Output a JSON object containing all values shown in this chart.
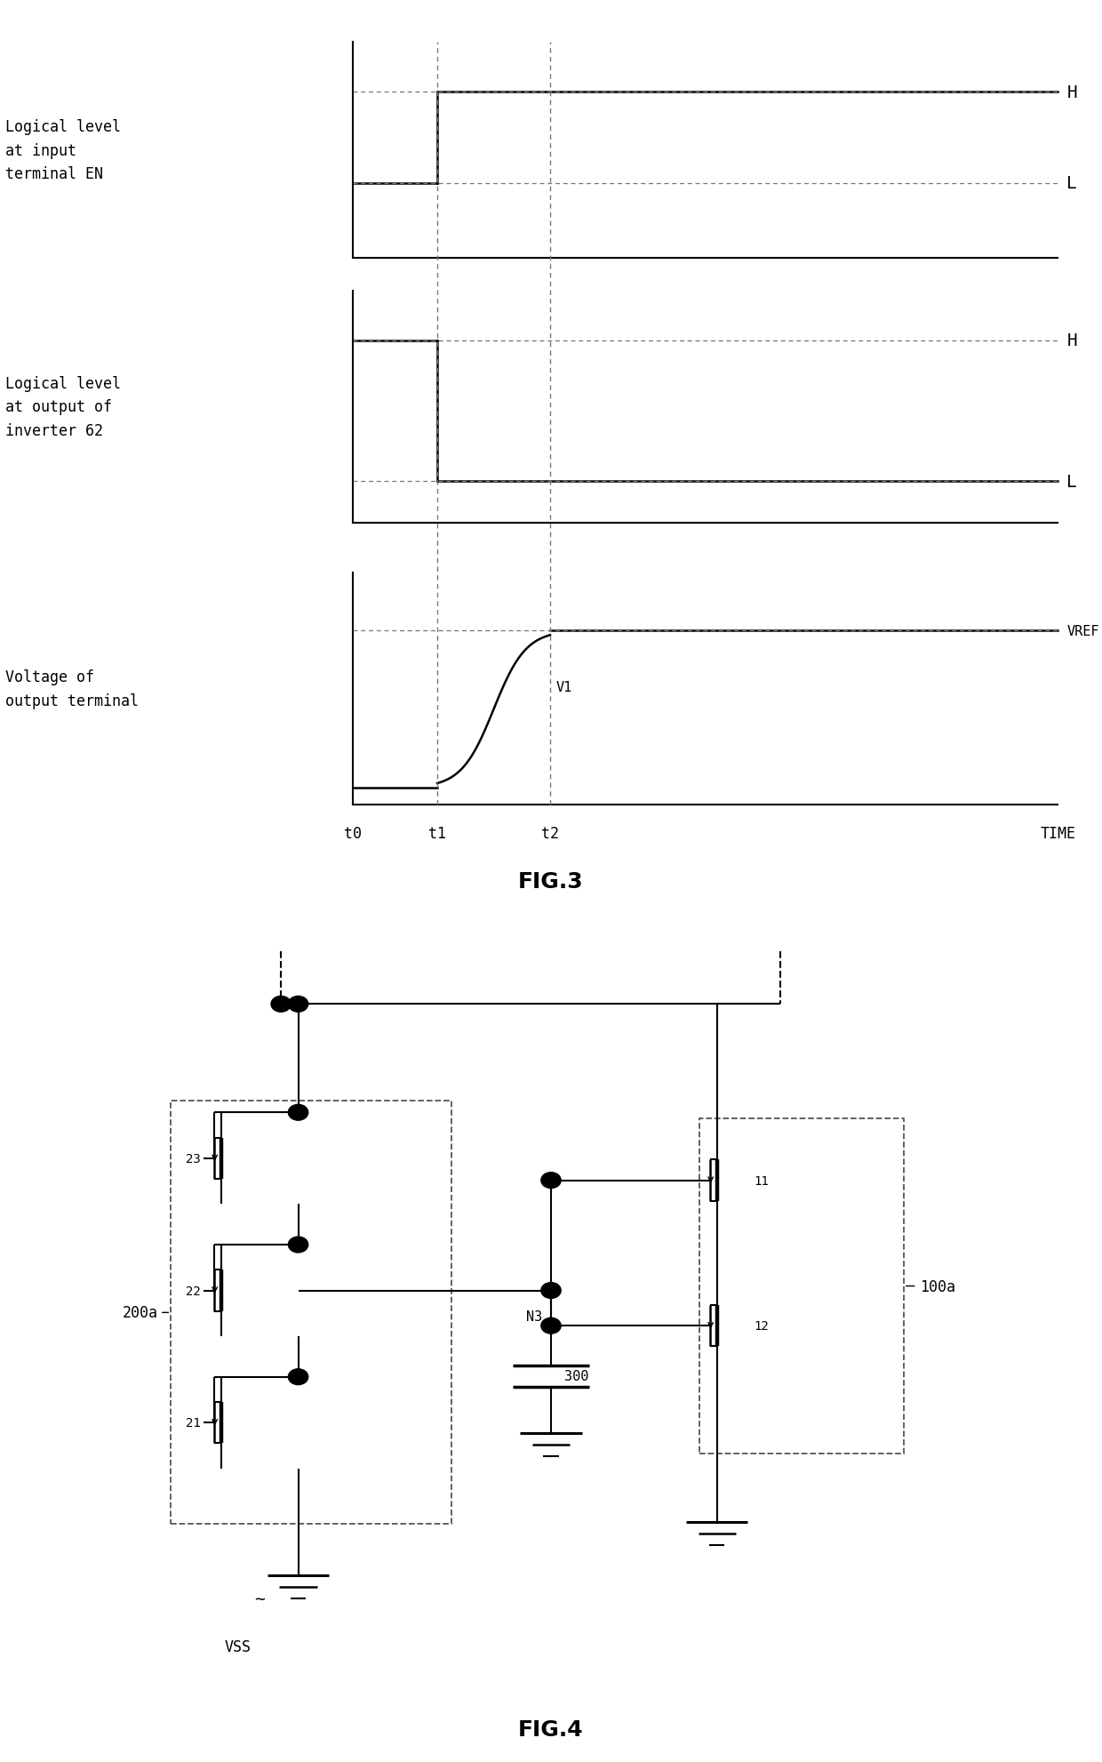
{
  "fig3": {
    "title": "FIG.3",
    "bg_color": "#ffffff",
    "line_color": "#000000",
    "dashed_color": "#777777",
    "t0": 0.0,
    "t1": 0.12,
    "t2": 0.28,
    "tend": 1.0,
    "panel1_label": "Logical level\nat input\nterminal EN",
    "panel2_label": "Logical level\nat output of\ninverter 62",
    "panel3_label": "Voltage of\noutput terminal",
    "xlabel": "TIME",
    "H_label": "H",
    "L_label": "L",
    "VREF_label": "VREF",
    "V1_label": "V1"
  },
  "fig4": {
    "title": "FIG.4",
    "label_200a": "200a",
    "label_100a": "100a",
    "label_N3": "N3",
    "label_300": "300",
    "label_VSS": "VSS",
    "label_11": "11",
    "label_12": "12",
    "label_21": "21",
    "label_22": "22",
    "label_23": "23"
  }
}
